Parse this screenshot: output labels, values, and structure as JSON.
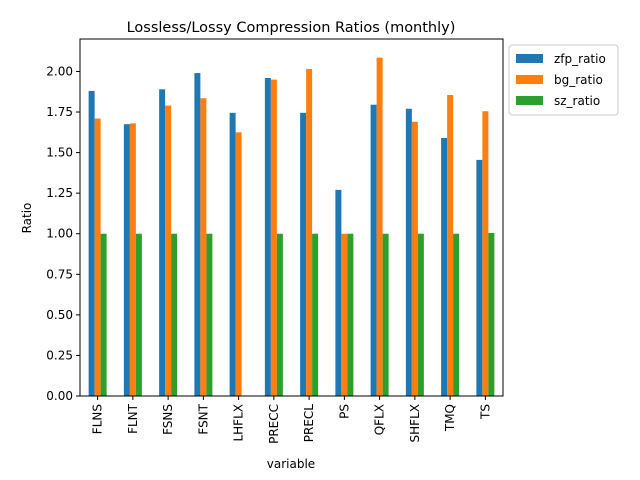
{
  "chart_data": {
    "type": "bar",
    "title": "Lossless/Lossy Compression Ratios (monthly)",
    "xlabel": "variable",
    "ylabel": "Ratio",
    "ylim": [
      0,
      2.2
    ],
    "yticks": [
      "0.00",
      "0.25",
      "0.50",
      "0.75",
      "1.00",
      "1.25",
      "1.50",
      "1.75",
      "2.00"
    ],
    "ytick_values": [
      0,
      0.25,
      0.5,
      0.75,
      1.0,
      1.25,
      1.5,
      1.75,
      2.0
    ],
    "categories": [
      "FLNS",
      "FLNT",
      "FSNS",
      "FSNT",
      "LHFLX",
      "PRECC",
      "PRECL",
      "PS",
      "QFLX",
      "SHFLX",
      "TMQ",
      "TS"
    ],
    "series": [
      {
        "name": "zfp_ratio",
        "color": "#1f77b4",
        "values": [
          1.88,
          1.675,
          1.89,
          1.99,
          1.745,
          1.96,
          1.745,
          1.27,
          1.795,
          1.77,
          1.59,
          1.455
        ]
      },
      {
        "name": "bg_ratio",
        "color": "#ff7f0e",
        "values": [
          1.71,
          1.68,
          1.79,
          1.835,
          1.625,
          1.95,
          2.015,
          1.0,
          2.085,
          1.69,
          1.855,
          1.755
        ]
      },
      {
        "name": "sz_ratio",
        "color": "#2ca02c",
        "values": [
          1.0,
          1.0,
          1.0,
          1.0,
          0.0,
          1.0,
          1.0,
          1.0,
          1.0,
          1.0,
          1.0,
          1.005
        ]
      }
    ],
    "grid": false,
    "legend_position": "outside-top-right"
  }
}
